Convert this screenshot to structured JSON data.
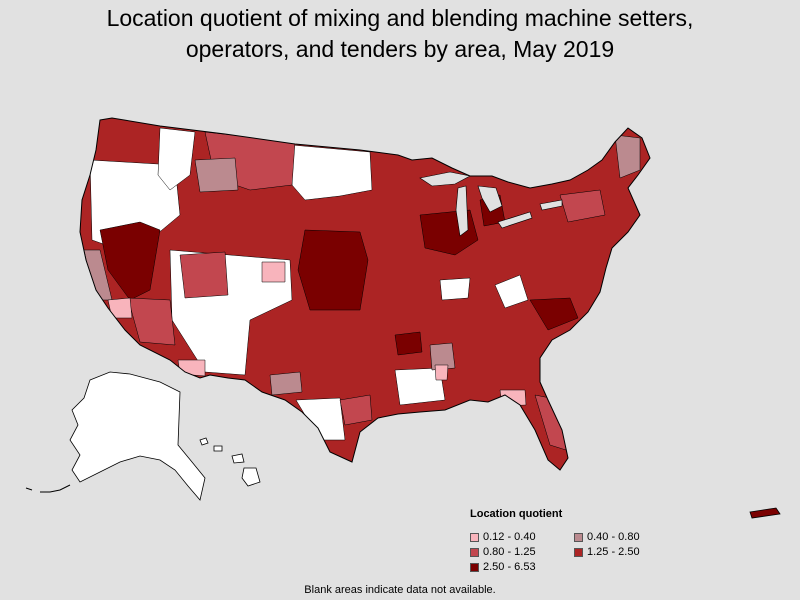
{
  "title_line1": "Location quotient of mixing and blending machine setters,",
  "title_line2": "operators, and tenders by area, May 2019",
  "legend": {
    "title": "Location quotient",
    "items": [
      {
        "label": "0.12 - 0.40",
        "color": "#f8b4bc",
        "key": "q1"
      },
      {
        "label": "0.40 - 0.80",
        "color": "#bb8a8f",
        "key": "q2"
      },
      {
        "label": "0.80 - 1.25",
        "color": "#c2474f",
        "key": "q3"
      },
      {
        "label": "1.25 - 2.50",
        "color": "#ac2424",
        "key": "q4"
      },
      {
        "label": "2.50 - 6.53",
        "color": "#7a0000",
        "key": "q5"
      }
    ]
  },
  "footnote": "Blank areas indicate data not available.",
  "colors": {
    "background": "#e1e1e1",
    "no_data": "#ffffff",
    "border": "#000000"
  }
}
